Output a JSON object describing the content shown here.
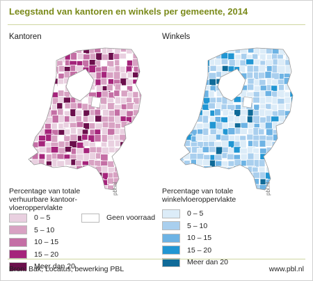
{
  "title": "Leegstand van kantoren en winkels per gemeente, 2014",
  "panels": {
    "offices": {
      "title": "Kantoren",
      "credit": "pbl.nl",
      "legend_heading": [
        "Percentage van totale",
        "verhuurbare kantoor-",
        "vloeroppervlakte"
      ],
      "legend": [
        {
          "label": "0 – 5",
          "color": "#e9d0e0"
        },
        {
          "label": "5 – 10",
          "color": "#d8a2c3"
        },
        {
          "label": "10 – 15",
          "color": "#c46fa5"
        },
        {
          "label": "15 – 20",
          "color": "#a5247b"
        },
        {
          "label": "Meer dan 20",
          "color": "#6b0f4c"
        }
      ],
      "no_stock": {
        "label": "Geen voorraad",
        "color": "#ffffff"
      }
    },
    "shops": {
      "title": "Winkels",
      "credit": "pbl.nl",
      "legend_heading": [
        "Percentage van totale",
        "winkelvloeroppervlakte"
      ],
      "legend": [
        {
          "label": "0 – 5",
          "color": "#dcecf8"
        },
        {
          "label": "5 – 10",
          "color": "#a9cfee"
        },
        {
          "label": "10 – 15",
          "color": "#6db3e4"
        },
        {
          "label": "15 – 20",
          "color": "#2196d3"
        },
        {
          "label": "Meer dan 20",
          "color": "#0f6a98"
        }
      ]
    }
  },
  "source": "Bron: Bak; Locatus; bewerking PBL",
  "website": "www.pbl.nl",
  "colors": {
    "title": "#7a8a1a",
    "border": "#ffffff",
    "water": "#ffffff"
  }
}
